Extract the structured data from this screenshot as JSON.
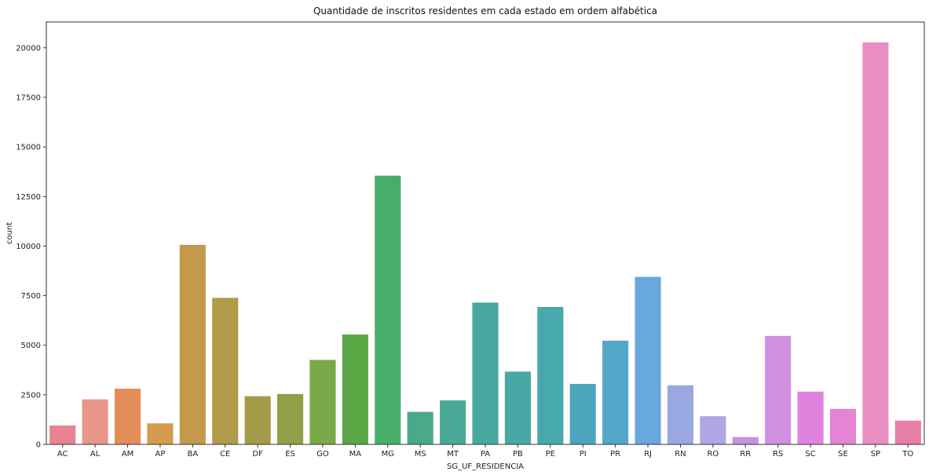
{
  "chart_data": {
    "type": "bar",
    "title": "Quantidade de inscritos residentes em cada estado em ordem alfabética",
    "xlabel": "SG_UF_RESIDENCIA",
    "ylabel": "count",
    "ylim": [
      0,
      21300
    ],
    "yticks": [
      0,
      2500,
      5000,
      7500,
      10000,
      12500,
      15000,
      17500,
      20000
    ],
    "grid": false,
    "categories": [
      "AC",
      "AL",
      "AM",
      "AP",
      "BA",
      "CE",
      "DF",
      "ES",
      "GO",
      "MA",
      "MG",
      "MS",
      "MT",
      "PA",
      "PB",
      "PE",
      "PI",
      "PR",
      "RJ",
      "RN",
      "RO",
      "RR",
      "RS",
      "SC",
      "SE",
      "SP",
      "TO"
    ],
    "values": [
      950,
      2270,
      2810,
      1060,
      10060,
      7390,
      2430,
      2540,
      4260,
      5540,
      13550,
      1640,
      2220,
      7150,
      3670,
      6930,
      3050,
      5230,
      8450,
      2980,
      1420,
      370,
      5470,
      2660,
      1790,
      20270,
      1200
    ],
    "colors": [
      "#e8838f",
      "#e8958a",
      "#e38e58",
      "#d79b4e",
      "#c3994b",
      "#b09b49",
      "#a29c49",
      "#939f49",
      "#7aa846",
      "#5aa845",
      "#48ad6b",
      "#4aa98a",
      "#49a996",
      "#47a89f",
      "#47a8a5",
      "#47a8ad",
      "#4ba6bd",
      "#52a6c8",
      "#68a8dc",
      "#9aa8e2",
      "#b0a5e5",
      "#c694e2",
      "#d291e0",
      "#df83df",
      "#e484d2",
      "#e98ec3",
      "#e87fa8"
    ]
  }
}
